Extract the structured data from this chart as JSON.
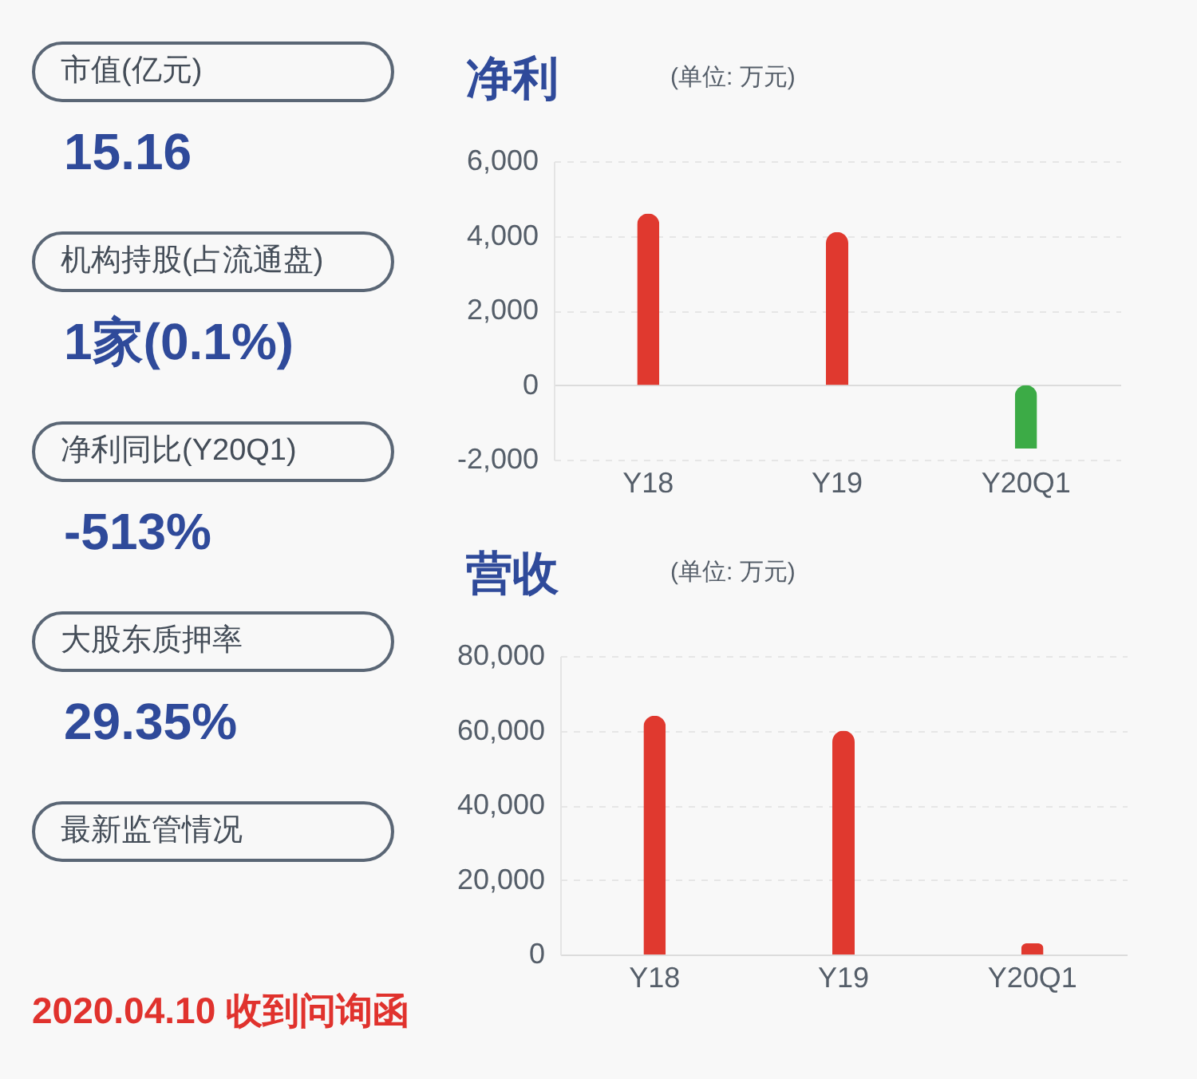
{
  "chart_data": [
    {
      "type": "other",
      "annotations": [
        "市值(亿元)",
        "15.16",
        "机构持股(占流通盘)",
        "1家(0.1%)",
        "净利同比(Y20Q1)",
        "-513%",
        "大股东质押率",
        "29.35%",
        "最新监管情况",
        "2020.04.10 收到问询函"
      ]
    },
    {
      "type": "bar",
      "title": "净利",
      "subtitle": "(单位: 万元)",
      "categories": [
        "Y18",
        "Y19",
        "Y20Q1"
      ],
      "values": [
        4600,
        4100,
        -1700
      ],
      "colors": [
        "#e0392f",
        "#e0392f",
        "#3cab46"
      ],
      "ylim": [
        -2000,
        6000
      ],
      "yticks": [
        {
          "value": -2000,
          "label": "-2,000"
        },
        0,
        {
          "value": 2000,
          "label": "2,000"
        },
        {
          "value": 4000,
          "label": "4,000"
        },
        {
          "value": 6000,
          "label": "6,000"
        }
      ],
      "grid": "y"
    },
    {
      "type": "bar",
      "title": "营收",
      "subtitle": "(单位: 万元)",
      "categories": [
        "Y18",
        "Y19",
        "Y20Q1"
      ],
      "values": [
        64000,
        60000,
        3000
      ],
      "colors": [
        "#e0392f",
        "#e0392f",
        "#e0392f"
      ],
      "ylim": [
        0,
        80000
      ],
      "yticks": [
        0,
        {
          "value": 20000,
          "label": "20,000"
        },
        {
          "value": 40000,
          "label": "40,000"
        },
        {
          "value": 60000,
          "label": "60,000"
        },
        {
          "value": 80000,
          "label": "80,000"
        }
      ],
      "grid": "y"
    }
  ]
}
